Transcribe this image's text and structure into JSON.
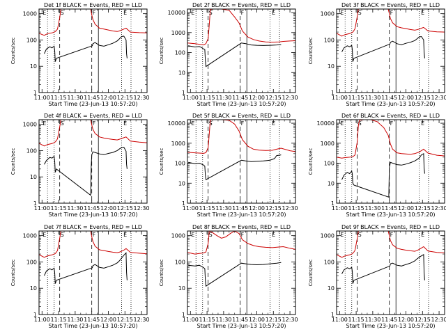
{
  "figure": {
    "xlabel": "Start Time (23-Jun-13 10:57:20)",
    "ylabel": "Counts/sec",
    "x_ticks": [
      "11:00",
      "11:15",
      "11:30",
      "11:45",
      "12:00",
      "12:15",
      "12:30"
    ],
    "x_tick_minutes": [
      0,
      15,
      30,
      45,
      60,
      75,
      90
    ],
    "x_range_minutes": [
      -2.7,
      95
    ],
    "markers": {
      "dotted_minutes": [
        5,
        11,
        72,
        80.5
      ],
      "dashed_minutes": [
        16,
        45
      ],
      "solid_minutes": [
        51
      ]
    },
    "marker_letters": [
      {
        "label": "E",
        "minute": 0
      },
      {
        "label": "S",
        "minute": 16
      },
      {
        "label": "F",
        "minute": 45
      },
      {
        "label": "E",
        "minute": 73
      }
    ]
  },
  "chart_data": [
    {
      "type": "line",
      "title": "Det 1f BLACK = Events, RED = LLD",
      "yscale": "log",
      "yticks": [
        "1",
        "10",
        "100",
        "1000"
      ],
      "ylim": [
        1,
        1500
      ],
      "series": [
        {
          "name": "Events",
          "color": "#000000",
          "x": [
            2,
            4,
            7,
            9,
            11,
            11.5,
            12,
            13,
            45.5,
            46,
            48,
            52,
            56,
            60,
            64,
            68,
            70,
            72,
            74,
            76,
            76.5,
            77
          ],
          "y": [
            30,
            45,
            55,
            50,
            58,
            40,
            15,
            20,
            60,
            72,
            80,
            62,
            58,
            66,
            75,
            92,
            110,
            135,
            140,
            100,
            30,
            20
          ]
        },
        {
          "name": "LLD",
          "color": "#cc0000",
          "x": [
            -2.7,
            2,
            5,
            9,
            11,
            12,
            13,
            14,
            16,
            17,
            17.5,
            44,
            45,
            46,
            48,
            52,
            56,
            60,
            64,
            68,
            70,
            72,
            74,
            76,
            80,
            88,
            95
          ],
          "y": [
            180,
            150,
            175,
            185,
            200,
            210,
            230,
            260,
            700,
            1500,
            1500,
            1500,
            900,
            600,
            400,
            280,
            260,
            240,
            220,
            210,
            220,
            240,
            260,
            280,
            200,
            190,
            185
          ]
        }
      ]
    },
    {
      "type": "line",
      "title": "Det 2f BLACK = Events, RED = LLD",
      "yscale": "log",
      "yticks": [
        "1",
        "10",
        "100",
        "1000",
        "10000"
      ],
      "ylim": [
        1,
        15000
      ],
      "series": [
        {
          "name": "Events",
          "color": "#000000",
          "x": [
            -2,
            4,
            8,
            10,
            12,
            13,
            13.5,
            14,
            46,
            50,
            55,
            60,
            66,
            72,
            78,
            82
          ],
          "y": [
            220,
            190,
            200,
            180,
            150,
            140,
            40,
            20,
            300,
            280,
            240,
            230,
            225,
            230,
            240,
            250
          ]
        },
        {
          "name": "LLD",
          "color": "#cc0000",
          "x": [
            -2.7,
            4,
            8,
            12,
            14,
            16,
            17,
            18,
            20,
            23,
            28,
            35,
            40,
            44,
            47,
            52,
            57,
            62,
            68,
            74,
            80,
            84,
            90,
            95
          ],
          "y": [
            300,
            280,
            260,
            240,
            280,
            500,
            2500,
            14000,
            15000,
            15000,
            15000,
            13000,
            6000,
            3000,
            1200,
            600,
            450,
            380,
            340,
            330,
            340,
            360,
            380,
            390
          ]
        }
      ]
    },
    {
      "type": "line",
      "title": "Det 3f BLACK = Events, RED = LLD",
      "yscale": "log",
      "yticks": [
        "1",
        "10",
        "100",
        "1000"
      ],
      "ylim": [
        1,
        1500
      ],
      "series": [
        {
          "name": "Events",
          "color": "#000000",
          "x": [
            2,
            4,
            7,
            9,
            11,
            11.5,
            12,
            13,
            45.5,
            46,
            48,
            52,
            56,
            60,
            64,
            68,
            70,
            72,
            74,
            76,
            76.5,
            77
          ],
          "y": [
            35,
            50,
            60,
            55,
            62,
            45,
            15,
            20,
            70,
            82,
            90,
            72,
            66,
            75,
            82,
            95,
            110,
            130,
            135,
            100,
            35,
            20
          ]
        },
        {
          "name": "LLD",
          "color": "#cc0000",
          "x": [
            -2.7,
            2,
            5,
            9,
            11,
            12,
            13,
            14,
            16,
            17,
            17.5,
            44,
            45,
            46,
            48,
            52,
            56,
            60,
            64,
            68,
            70,
            72,
            74,
            76,
            80,
            88,
            95
          ],
          "y": [
            180,
            140,
            160,
            175,
            190,
            200,
            230,
            270,
            800,
            1500,
            1500,
            1500,
            1000,
            650,
            450,
            320,
            290,
            270,
            250,
            235,
            245,
            260,
            280,
            300,
            220,
            205,
            200
          ]
        }
      ]
    },
    {
      "type": "line",
      "title": "Det 4f BLACK = Events, RED = LLD",
      "yscale": "log",
      "yticks": [
        "1",
        "10",
        "100",
        "1000"
      ],
      "ylim": [
        1,
        1500
      ],
      "series": [
        {
          "name": "Events",
          "color": "#000000",
          "x": [
            2,
            4,
            7,
            9,
            11,
            11.5,
            12,
            13,
            44,
            44.5,
            45,
            46,
            48,
            52,
            56,
            60,
            64,
            68,
            70,
            72,
            74,
            76,
            76.5,
            77
          ],
          "y": [
            30,
            42,
            55,
            52,
            60,
            40,
            15,
            20,
            2,
            25,
            70,
            90,
            85,
            75,
            70,
            78,
            85,
            100,
            115,
            130,
            135,
            95,
            30,
            20
          ]
        },
        {
          "name": "LLD",
          "color": "#cc0000",
          "x": [
            -2.7,
            2,
            5,
            9,
            11,
            12,
            13,
            14,
            16,
            17,
            17.5,
            44,
            45,
            46,
            48,
            52,
            56,
            60,
            64,
            68,
            70,
            72,
            74,
            76,
            80,
            88,
            95
          ],
          "y": [
            190,
            150,
            170,
            185,
            200,
            215,
            240,
            280,
            800,
            1500,
            1500,
            1500,
            950,
            650,
            450,
            330,
            300,
            280,
            265,
            255,
            270,
            290,
            310,
            330,
            230,
            210,
            200
          ]
        }
      ]
    },
    {
      "type": "line",
      "title": "Det 5f BLACK = Events, RED = LLD",
      "yscale": "log",
      "yticks": [
        "1",
        "10",
        "100",
        "1000",
        "10000"
      ],
      "ylim": [
        1,
        15000
      ],
      "series": [
        {
          "name": "Events",
          "color": "#000000",
          "x": [
            -2,
            4,
            8,
            10,
            12,
            13,
            13.5,
            14,
            46,
            50,
            55,
            60,
            66,
            72,
            76,
            78,
            82
          ],
          "y": [
            110,
            95,
            100,
            90,
            80,
            70,
            25,
            15,
            140,
            130,
            120,
            125,
            130,
            140,
            170,
            240,
            260
          ]
        },
        {
          "name": "LLD",
          "color": "#cc0000",
          "x": [
            -2.7,
            4,
            8,
            12,
            14,
            16,
            17,
            18,
            20,
            23,
            28,
            35,
            40,
            44,
            47,
            52,
            57,
            62,
            68,
            74,
            78,
            82,
            90,
            95
          ],
          "y": [
            350,
            330,
            320,
            310,
            340,
            600,
            3000,
            14000,
            15000,
            15000,
            15000,
            14000,
            9000,
            4000,
            1500,
            700,
            500,
            450,
            430,
            440,
            500,
            560,
            420,
            380
          ]
        }
      ]
    },
    {
      "type": "line",
      "title": "Det 6f BLACK = Events, RED = LLD",
      "yscale": "log",
      "yticks": [
        "1",
        "10",
        "100",
        "1000",
        "10000"
      ],
      "ylim": [
        1,
        15000
      ],
      "series": [
        {
          "name": "Events",
          "color": "#000000",
          "x": [
            2,
            4,
            7,
            9,
            11,
            11.5,
            12,
            13,
            44.5,
            45,
            46,
            48,
            52,
            56,
            60,
            64,
            68,
            72,
            74,
            76,
            76.5,
            77
          ],
          "y": [
            15,
            25,
            35,
            30,
            40,
            30,
            10,
            8,
            2,
            60,
            110,
            100,
            85,
            80,
            90,
            105,
            130,
            180,
            260,
            300,
            60,
            30
          ]
        },
        {
          "name": "LLD",
          "color": "#cc0000",
          "x": [
            -2.7,
            2,
            5,
            9,
            12,
            14,
            16,
            17,
            18,
            22,
            28,
            34,
            40,
            44,
            46,
            48,
            52,
            56,
            60,
            64,
            68,
            72,
            76,
            80,
            88,
            95
          ],
          "y": [
            200,
            180,
            190,
            200,
            210,
            260,
            1200,
            8000,
            14000,
            15000,
            15000,
            12000,
            6000,
            2500,
            900,
            500,
            330,
            300,
            290,
            280,
            300,
            360,
            500,
            320,
            250,
            230
          ]
        }
      ]
    },
    {
      "type": "line",
      "title": "Det 7f BLACK = Events, RED = LLD",
      "yscale": "log",
      "yticks": [
        "1",
        "10",
        "100",
        "1000"
      ],
      "ylim": [
        1,
        1500
      ],
      "series": [
        {
          "name": "Events",
          "color": "#000000",
          "x": [
            2,
            4,
            7,
            9,
            11,
            11.5,
            12,
            13,
            45.5,
            46,
            48,
            52,
            56,
            60,
            64,
            68,
            70,
            72,
            74,
            76,
            76.5,
            77
          ],
          "y": [
            30,
            45,
            55,
            50,
            58,
            40,
            15,
            20,
            60,
            72,
            80,
            62,
            58,
            66,
            75,
            92,
            110,
            140,
            180,
            220,
            40,
            20
          ]
        },
        {
          "name": "LLD",
          "color": "#cc0000",
          "x": [
            -2.7,
            2,
            5,
            9,
            11,
            12,
            13,
            14,
            16,
            17,
            17.5,
            44,
            45,
            46,
            48,
            52,
            56,
            60,
            64,
            68,
            70,
            72,
            74,
            76,
            80,
            88,
            95
          ],
          "y": [
            190,
            150,
            170,
            185,
            200,
            210,
            235,
            270,
            800,
            1500,
            1500,
            1500,
            900,
            600,
            400,
            290,
            270,
            250,
            235,
            225,
            235,
            255,
            280,
            320,
            230,
            215,
            205
          ]
        }
      ]
    },
    {
      "type": "line",
      "title": "Det 8f BLACK = Events, RED = LLD",
      "yscale": "log",
      "yticks": [
        "1",
        "10",
        "100",
        "1000"
      ],
      "ylim": [
        1,
        1500
      ],
      "series": [
        {
          "name": "Events",
          "color": "#000000",
          "x": [
            -2,
            4,
            8,
            10,
            12,
            13,
            13.5,
            14,
            46,
            50,
            55,
            60,
            66,
            72,
            78,
            82
          ],
          "y": [
            75,
            70,
            75,
            68,
            60,
            55,
            20,
            12,
            90,
            85,
            80,
            78,
            80,
            85,
            90,
            95
          ]
        },
        {
          "name": "LLD",
          "color": "#cc0000",
          "x": [
            -2.7,
            4,
            8,
            12,
            14,
            16,
            17,
            17.5,
            20,
            24,
            28,
            32,
            36,
            40,
            44,
            47,
            52,
            57,
            62,
            68,
            74,
            80,
            84,
            90,
            95
          ],
          "y": [
            230,
            200,
            210,
            220,
            240,
            500,
            1500,
            1500,
            1300,
            1000,
            800,
            900,
            1200,
            1500,
            1200,
            700,
            500,
            420,
            380,
            360,
            350,
            370,
            380,
            330,
            300
          ]
        }
      ]
    },
    {
      "type": "line",
      "title": "Det 9f BLACK = Events, RED = LLD",
      "yscale": "log",
      "yticks": [
        "1",
        "10",
        "100",
        "1000"
      ],
      "ylim": [
        1,
        1500
      ],
      "series": [
        {
          "name": "Events",
          "color": "#000000",
          "x": [
            2,
            4,
            7,
            9,
            11,
            11.5,
            12,
            13,
            45.5,
            46,
            48,
            52,
            56,
            60,
            64,
            68,
            70,
            72,
            74,
            76,
            76.5,
            77
          ],
          "y": [
            35,
            50,
            60,
            55,
            62,
            45,
            15,
            20,
            70,
            85,
            90,
            75,
            70,
            80,
            90,
            110,
            130,
            150,
            170,
            190,
            40,
            20
          ]
        },
        {
          "name": "LLD",
          "color": "#cc0000",
          "x": [
            -2.7,
            2,
            5,
            9,
            11,
            12,
            13,
            14,
            16,
            17,
            17.5,
            44,
            45,
            46,
            48,
            52,
            56,
            60,
            64,
            68,
            70,
            72,
            74,
            76,
            80,
            88,
            95
          ],
          "y": [
            190,
            150,
            170,
            185,
            200,
            215,
            240,
            280,
            800,
            1500,
            1500,
            1500,
            1000,
            650,
            450,
            330,
            300,
            280,
            265,
            255,
            270,
            300,
            340,
            380,
            260,
            230,
            220
          ]
        }
      ]
    }
  ]
}
